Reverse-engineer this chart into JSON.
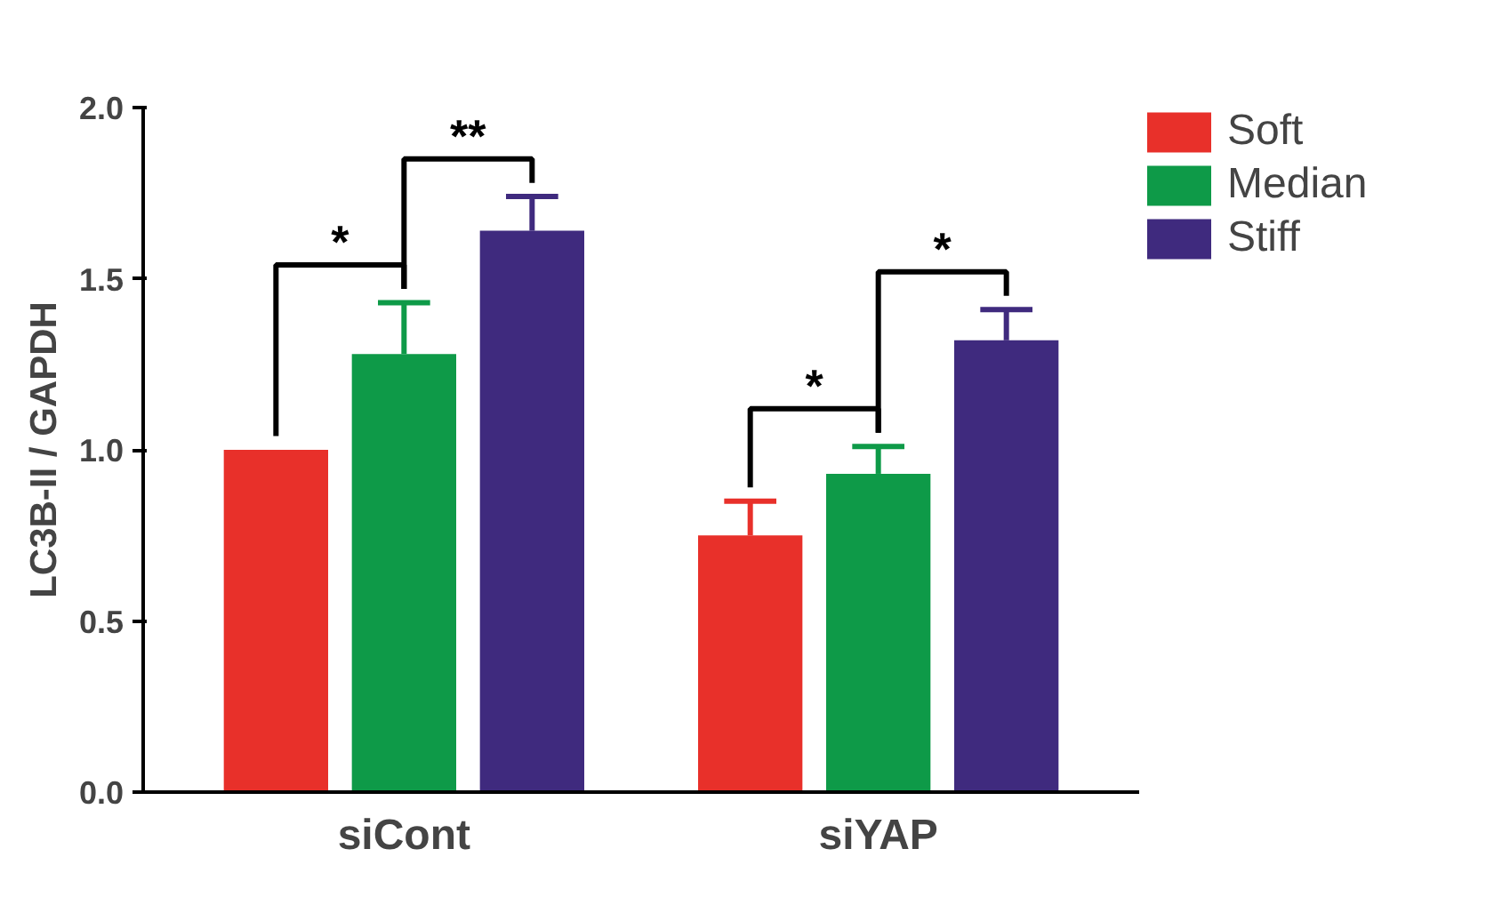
{
  "chart_data": {
    "type": "bar",
    "ylabel": "LC3B-II / GAPDH",
    "categories": [
      "siCont",
      "siYAP"
    ],
    "series": [
      {
        "name": "Soft",
        "color": "#e8302a",
        "values": [
          1.0,
          0.75
        ],
        "errors": [
          null,
          0.1
        ]
      },
      {
        "name": "Median",
        "color": "#0e9a48",
        "values": [
          1.28,
          0.93
        ],
        "errors": [
          0.15,
          0.08
        ]
      },
      {
        "name": "Stiff",
        "color": "#3f2a7e",
        "values": [
          1.64,
          1.32
        ],
        "errors": [
          0.1,
          0.09
        ]
      }
    ],
    "ylim": [
      0,
      2.0
    ],
    "yticks": [
      {
        "value": 0,
        "label": "0.0"
      },
      {
        "value": 0.5,
        "label": "0.5"
      },
      {
        "value": 1,
        "label": "1.0"
      },
      {
        "value": 1.5,
        "label": "1.5"
      },
      {
        "value": 2,
        "label": "2.0"
      }
    ],
    "annotations": [
      "*",
      "**",
      "*",
      "*"
    ],
    "grid": false,
    "legend": "top right"
  }
}
